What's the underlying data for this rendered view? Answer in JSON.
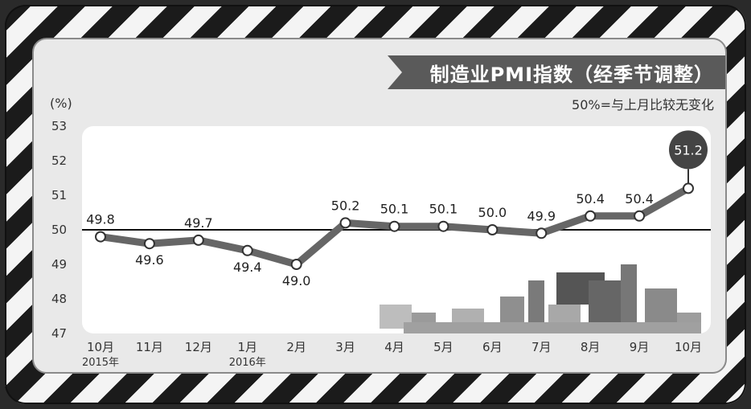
{
  "title": "制造业PMI指数（经季节调整）",
  "subtitle": "50%=与上月比较无变化",
  "y_unit": "(%)",
  "colors": {
    "line": "#666666",
    "baseline": "#111111",
    "highlight": "#444444",
    "plot_bg": "#ffffff"
  },
  "chart_data": {
    "type": "line",
    "title": "制造业PMI指数（经季节调整）",
    "ylabel": "(%)",
    "ylim": [
      47,
      53
    ],
    "yticks": [
      "47",
      "48",
      "49",
      "50",
      "51",
      "52",
      "53"
    ],
    "baseline": 50,
    "categories": [
      "10月",
      "11月",
      "12月",
      "1月",
      "2月",
      "3月",
      "4月",
      "5月",
      "6月",
      "7月",
      "8月",
      "9月",
      "10月"
    ],
    "year_labels": {
      "0": "2015年",
      "3": "2016年"
    },
    "values": [
      49.8,
      49.6,
      49.7,
      49.4,
      49.0,
      50.2,
      50.1,
      50.1,
      50.0,
      49.9,
      50.4,
      50.4,
      51.2
    ],
    "value_labels": [
      "49.8",
      "49.6",
      "49.7",
      "49.4",
      "49.0",
      "50.2",
      "50.1",
      "50.1",
      "50.0",
      "49.9",
      "50.4",
      "50.4",
      "51.2"
    ],
    "highlight_index": 12,
    "grid": false,
    "legend": "none"
  }
}
